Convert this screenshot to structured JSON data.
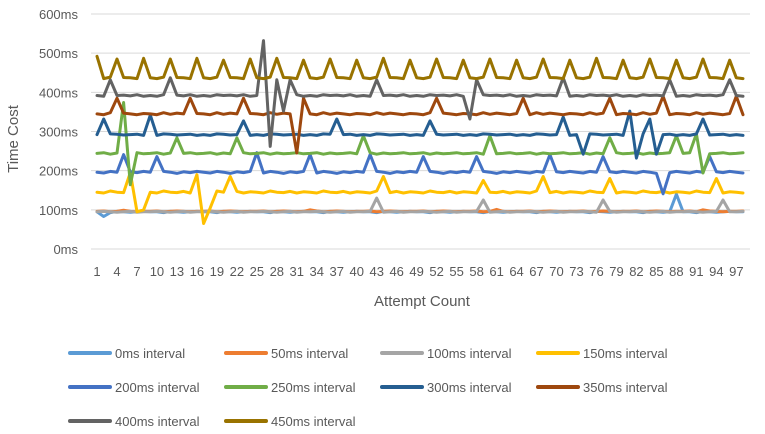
{
  "chart_data": {
    "type": "line",
    "title": "",
    "xlabel": "Attempt Count",
    "ylabel": "Time Cost",
    "ylim": [
      0,
      600
    ],
    "yticks": [
      "0ms",
      "100ms",
      "200ms",
      "300ms",
      "400ms",
      "500ms",
      "600ms"
    ],
    "x_tick_labels": [
      "1",
      "4",
      "7",
      "10",
      "13",
      "16",
      "19",
      "22",
      "25",
      "28",
      "31",
      "34",
      "37",
      "40",
      "43",
      "46",
      "49",
      "52",
      "55",
      "58",
      "61",
      "64",
      "67",
      "70",
      "73",
      "76",
      "79",
      "82",
      "85",
      "88",
      "91",
      "94",
      "97"
    ],
    "x_count": 98,
    "grid": "horizontal",
    "legend_position": "bottom",
    "series": [
      {
        "name": "0ms interval",
        "color": "#5B9BD5",
        "base": 95,
        "pattern": [
          0,
          0,
          -2,
          1,
          0,
          -1,
          0,
          1
        ],
        "spikes": {
          "2": -12,
          "88": 45
        }
      },
      {
        "name": "50ms interval",
        "color": "#ED7D31",
        "base": 96,
        "pattern": [
          0,
          1,
          -1,
          0,
          1,
          0,
          -1,
          0
        ],
        "spikes": {
          "5": 3,
          "33": 4,
          "61": 5,
          "92": 4
        }
      },
      {
        "name": "100ms interval",
        "color": "#A5A5A5",
        "base": 95,
        "pattern": [
          0,
          1,
          0,
          -1,
          0,
          1,
          -1,
          0
        ],
        "spikes": {
          "43": 35,
          "59": 30,
          "77": 30,
          "95": 30
        }
      },
      {
        "name": "150ms interval",
        "color": "#FFC000",
        "base": 145,
        "pattern": [
          0,
          -2,
          3,
          0,
          -1,
          2,
          -2,
          1
        ],
        "spikes": {
          "6": 50,
          "7": -50,
          "8": -45,
          "16": 45,
          "17": -80,
          "18": -40,
          "21": 40,
          "44": 40,
          "59": 30,
          "68": 40,
          "78": 35,
          "94": 35
        }
      },
      {
        "name": "200ms interval",
        "color": "#4472C4",
        "base": 196,
        "pattern": [
          0,
          -2,
          2,
          0,
          -3,
          1,
          -1,
          2
        ],
        "spikes": {
          "5": 45,
          "10": 40,
          "25": 50,
          "33": 45,
          "42": 45,
          "50": 40,
          "58": 40,
          "69": 45,
          "77": 40,
          "86": -55,
          "93": 40
        }
      },
      {
        "name": "250ms interval",
        "color": "#70AD47",
        "base": 244,
        "pattern": [
          0,
          2,
          -2,
          1,
          -1,
          0,
          2,
          -1
        ],
        "spikes": {
          "5": 130,
          "6": -80,
          "13": 40,
          "22": 40,
          "41": 45,
          "60": 45,
          "78": 40,
          "88": 45,
          "91": 50,
          "92": -50
        }
      },
      {
        "name": "300ms interval",
        "color": "#255E91",
        "base": 292,
        "pattern": [
          0,
          -2,
          2,
          1,
          -1,
          0,
          1,
          -2
        ],
        "spikes": {
          "2": 40,
          "9": 50,
          "23": 35,
          "37": 40,
          "51": 35,
          "71": 45,
          "74": -50,
          "81": 60,
          "82": -60,
          "84": 40,
          "85": -50,
          "92": 40
        }
      },
      {
        "name": "350ms interval",
        "color": "#9E480E",
        "base": 345,
        "pattern": [
          0,
          -2,
          3,
          -1,
          2,
          0,
          -2,
          1
        ],
        "spikes": {
          "4": 40,
          "15": 40,
          "23": 40,
          "31": -100,
          "32": 40,
          "52": 40,
          "65": 40,
          "78": 40,
          "86": 45,
          "97": 45
        }
      },
      {
        "name": "400ms interval",
        "color": "#636363",
        "base": 392,
        "pattern": [
          0,
          -2,
          2,
          0,
          1,
          -1,
          2,
          -2
        ],
        "spikes": {
          "3": 40,
          "12": 45,
          "26": 140,
          "27": -130,
          "28": 40,
          "29": -40,
          "30": 40,
          "43": 40,
          "57": -60,
          "58": 40,
          "71": 45,
          "87": 40,
          "96": 40
        }
      },
      {
        "name": "450ms interval",
        "color": "#997300",
        "base": 437,
        "pattern": [
          0,
          -2,
          2,
          -1,
          1,
          0,
          -2,
          2
        ],
        "spikes": {
          "1": 55,
          "4": 48,
          "8": 50,
          "12": 48,
          "16": 50,
          "20": 45,
          "24": 48,
          "28": 50,
          "32": 45,
          "36": 48,
          "40": 45,
          "44": 50,
          "48": 45,
          "52": 48,
          "56": 45,
          "60": 48,
          "64": 45,
          "68": 48,
          "72": 45,
          "76": 50,
          "80": 45,
          "84": 48,
          "88": 45,
          "92": 48,
          "96": 45
        }
      }
    ]
  }
}
